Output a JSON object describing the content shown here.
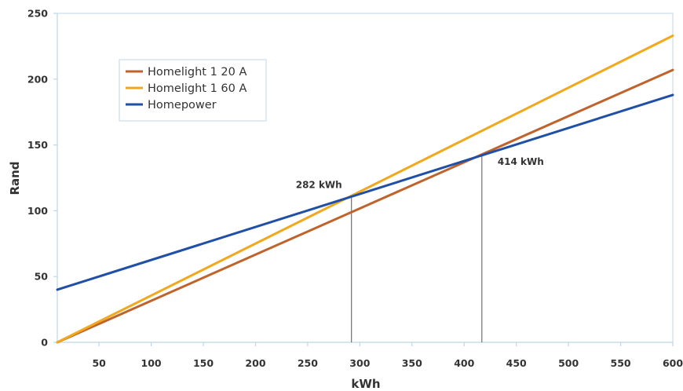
{
  "chart_data": {
    "type": "line",
    "title": "",
    "xlabel": "kWh",
    "ylabel": "Rand",
    "xlim": [
      10,
      600
    ],
    "ylim": [
      0,
      250
    ],
    "x_ticks": [
      50,
      100,
      150,
      200,
      250,
      300,
      350,
      400,
      450,
      500,
      550,
      600
    ],
    "y_ticks": [
      0,
      50,
      100,
      150,
      200,
      250
    ],
    "grid": false,
    "legend_position": "top-left",
    "series": [
      {
        "name": "Homelight 1 20 A",
        "color": "#c0622b",
        "x": [
          10,
          600
        ],
        "y": [
          0,
          207
        ]
      },
      {
        "name": "Homelight 1 60 A",
        "color": "#f2a81d",
        "x": [
          10,
          600
        ],
        "y": [
          0,
          233
        ]
      },
      {
        "name": "Homepower",
        "color": "#1f4fa6",
        "x": [
          10,
          600
        ],
        "y": [
          40,
          188
        ]
      }
    ],
    "annotations": [
      {
        "label": "282 kWh",
        "x": 292,
        "y": 110
      },
      {
        "label": "414 kWh",
        "x": 417,
        "y": 142
      }
    ]
  }
}
